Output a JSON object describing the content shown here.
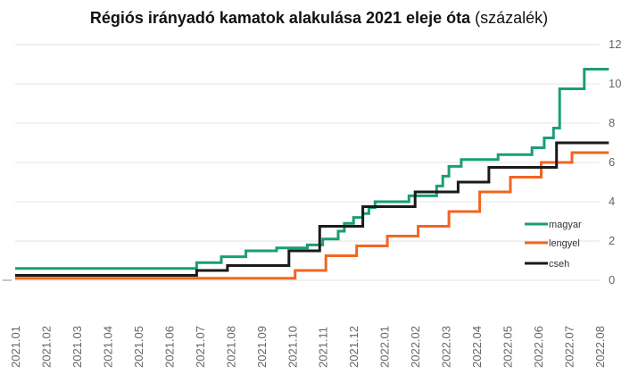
{
  "chart_data": {
    "type": "line",
    "title_bold": "Régiós irányadó kamatok alakulása 2021 eleje óta",
    "title_unit": "(százalék)",
    "x_ticks": [
      "2021.01",
      "2021.02",
      "2021.03",
      "2021.04",
      "2021.05",
      "2021.06",
      "2021.07",
      "2021.08",
      "2021.09",
      "2021.10",
      "2021.11",
      "2021.12",
      "2022.01",
      "2022.02",
      "2022.03",
      "2022.04",
      "2022.05",
      "2022.06",
      "2022.07",
      "2022.08"
    ],
    "y_ticks": [
      "0",
      "2",
      "4",
      "6",
      "8",
      "10",
      "12"
    ],
    "ylim": [
      0,
      12
    ],
    "y_axis_position": "right",
    "grid": true,
    "legend_position": "right",
    "series": [
      {
        "name": "magyar",
        "color": "#1a9e77",
        "points": [
          [
            0,
            0.6
          ],
          [
            5.9,
            0.6
          ],
          [
            5.9,
            0.9
          ],
          [
            6.7,
            0.9
          ],
          [
            6.7,
            1.2
          ],
          [
            7.5,
            1.2
          ],
          [
            7.5,
            1.5
          ],
          [
            8.5,
            1.5
          ],
          [
            8.5,
            1.65
          ],
          [
            9.5,
            1.65
          ],
          [
            9.5,
            1.8
          ],
          [
            10.0,
            1.8
          ],
          [
            10.0,
            2.1
          ],
          [
            10.5,
            2.1
          ],
          [
            10.5,
            2.5
          ],
          [
            10.7,
            2.5
          ],
          [
            10.7,
            2.9
          ],
          [
            11.0,
            2.9
          ],
          [
            11.0,
            3.2
          ],
          [
            11.3,
            3.2
          ],
          [
            11.3,
            3.4
          ],
          [
            11.5,
            3.4
          ],
          [
            11.5,
            3.7
          ],
          [
            11.7,
            3.7
          ],
          [
            11.7,
            4.0
          ],
          [
            12.8,
            4.0
          ],
          [
            12.8,
            4.3
          ],
          [
            13.7,
            4.3
          ],
          [
            13.7,
            4.8
          ],
          [
            13.9,
            4.8
          ],
          [
            13.9,
            5.3
          ],
          [
            14.1,
            5.3
          ],
          [
            14.1,
            5.8
          ],
          [
            14.5,
            5.8
          ],
          [
            14.5,
            6.15
          ],
          [
            15.7,
            6.15
          ],
          [
            15.7,
            6.4
          ],
          [
            16.8,
            6.4
          ],
          [
            16.8,
            6.75
          ],
          [
            17.2,
            6.75
          ],
          [
            17.2,
            7.25
          ],
          [
            17.5,
            7.25
          ],
          [
            17.5,
            7.75
          ],
          [
            17.7,
            7.75
          ],
          [
            17.7,
            9.75
          ],
          [
            18.5,
            9.75
          ],
          [
            18.5,
            10.75
          ],
          [
            19.3,
            10.75
          ]
        ]
      },
      {
        "name": "lengyel",
        "color": "#f26522",
        "points": [
          [
            0,
            0.1
          ],
          [
            9.1,
            0.1
          ],
          [
            9.1,
            0.5
          ],
          [
            10.1,
            0.5
          ],
          [
            10.1,
            1.25
          ],
          [
            11.1,
            1.25
          ],
          [
            11.1,
            1.75
          ],
          [
            12.1,
            1.75
          ],
          [
            12.1,
            2.25
          ],
          [
            13.1,
            2.25
          ],
          [
            13.1,
            2.75
          ],
          [
            14.1,
            2.75
          ],
          [
            14.1,
            3.5
          ],
          [
            15.1,
            3.5
          ],
          [
            15.1,
            4.5
          ],
          [
            16.1,
            4.5
          ],
          [
            16.1,
            5.25
          ],
          [
            17.1,
            5.25
          ],
          [
            17.1,
            6.0
          ],
          [
            18.1,
            6.0
          ],
          [
            18.1,
            6.5
          ],
          [
            19.3,
            6.5
          ]
        ]
      },
      {
        "name": "cseh",
        "color": "#1a1a1a",
        "points": [
          [
            0,
            0.25
          ],
          [
            5.9,
            0.25
          ],
          [
            5.9,
            0.5
          ],
          [
            6.9,
            0.5
          ],
          [
            6.9,
            0.75
          ],
          [
            8.9,
            0.75
          ],
          [
            8.9,
            1.5
          ],
          [
            9.9,
            1.5
          ],
          [
            9.9,
            2.75
          ],
          [
            11.3,
            2.75
          ],
          [
            11.3,
            3.75
          ],
          [
            13.0,
            3.75
          ],
          [
            13.0,
            4.5
          ],
          [
            14.4,
            4.5
          ],
          [
            14.4,
            5.0
          ],
          [
            15.4,
            5.0
          ],
          [
            15.4,
            5.75
          ],
          [
            17.6,
            5.75
          ],
          [
            17.6,
            7.0
          ],
          [
            19.3,
            7.0
          ]
        ]
      }
    ]
  }
}
